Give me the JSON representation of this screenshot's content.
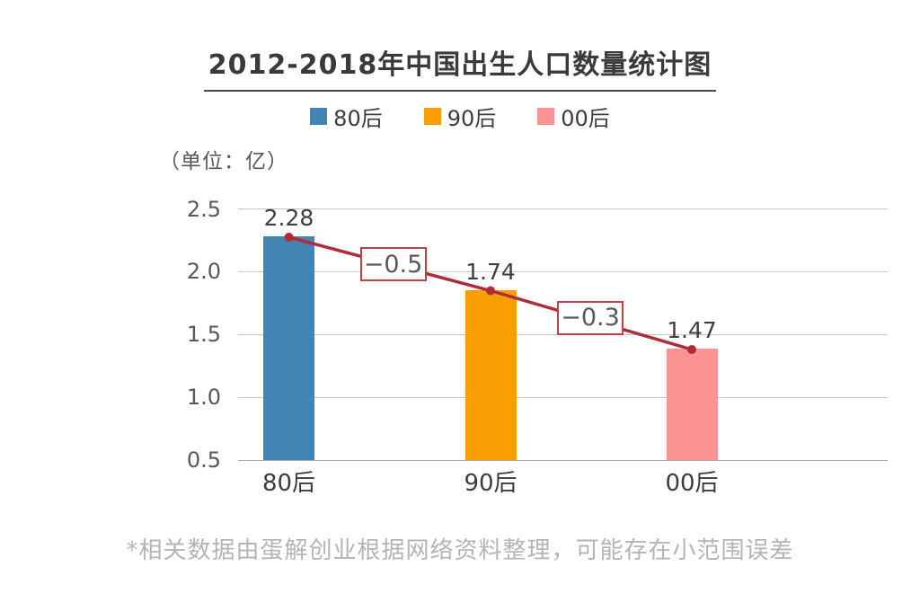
{
  "title": "2012-2018年中国出生人口数量统计图",
  "unit_label": "（单位：亿）",
  "footnote": "*相关数据由蛋解创业根据网络资料整理，可能存在小范围误差",
  "legend": {
    "position": "top",
    "items": [
      {
        "label": "80后",
        "color": "#4285b4"
      },
      {
        "label": "90后",
        "color": "#fa9e05"
      },
      {
        "label": "00后",
        "color": "#fc9494"
      }
    ]
  },
  "chart_data": {
    "type": "bar",
    "title": "2012-2018年中国出生人口数量统计图",
    "unit": "亿",
    "categories": [
      "80后",
      "90后",
      "00后"
    ],
    "values": [
      2.28,
      1.74,
      1.47
    ],
    "value_labels": [
      "2.28",
      "1.74",
      "1.47"
    ],
    "bar_colors": [
      "#4285b4",
      "#fa9e05",
      "#fc9494"
    ],
    "differences": [
      {
        "label": "−0.5",
        "value": -0.5
      },
      {
        "label": "−0.3",
        "value": -0.3
      }
    ],
    "trend_line": {
      "color": "#b02d35",
      "connects": "bar tops",
      "point_color": "#b02d35"
    },
    "y_axis": {
      "ticks": [
        "2.5",
        "2.0",
        "1.5",
        "1.0",
        "0.5"
      ],
      "min": 0.5,
      "max": 2.5
    },
    "grid": true,
    "grid_color": "#c6c6c6",
    "legend_position": "top"
  }
}
